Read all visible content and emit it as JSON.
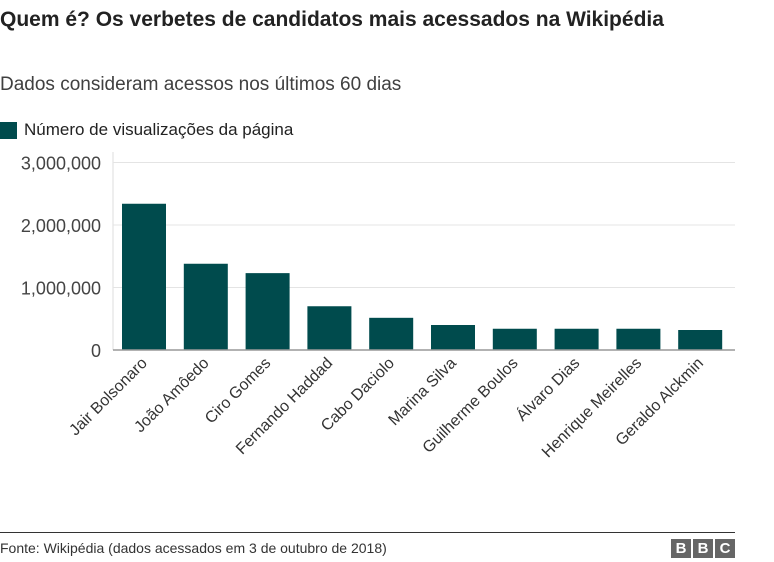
{
  "title": "Quem é? Os verbetes de candidatos mais acessados na Wikipédia",
  "subtitle": "Dados consideram acessos nos últimos 60 dias",
  "source": "Fonte: Wikipédia (dados acessados em 3 de outubro de 2018)",
  "logo": "BBC",
  "chart_data": {
    "type": "bar",
    "title": "Quem é? Os verbetes de candidatos mais acessados na Wikipédia",
    "subtitle": "Dados consideram acessos nos últimos 60 dias",
    "categories": [
      "Jair Bolsonaro",
      "João Amôedo",
      "Ciro Gomes",
      "Fernando Haddad",
      "Cabo Daciolo",
      "Marina Silva",
      "Guilherme Boulos",
      "Álvaro Dias",
      "Henrique Meirelles",
      "Geraldo Alckmin"
    ],
    "series": [
      {
        "name": "Número de visualizações da página",
        "values": [
          2340000,
          1380000,
          1230000,
          700000,
          515000,
          400000,
          340000,
          340000,
          340000,
          320000
        ],
        "color": "#004b4d"
      }
    ],
    "ylim": [
      0,
      3000000
    ],
    "yticks": [
      0,
      1000000,
      2000000,
      3000000
    ],
    "ytick_labels": [
      "0",
      "1,000,000",
      "2,000,000",
      "3,000,000"
    ],
    "grid": true,
    "legend_placement": "top-left",
    "xlabel": "",
    "ylabel": ""
  }
}
